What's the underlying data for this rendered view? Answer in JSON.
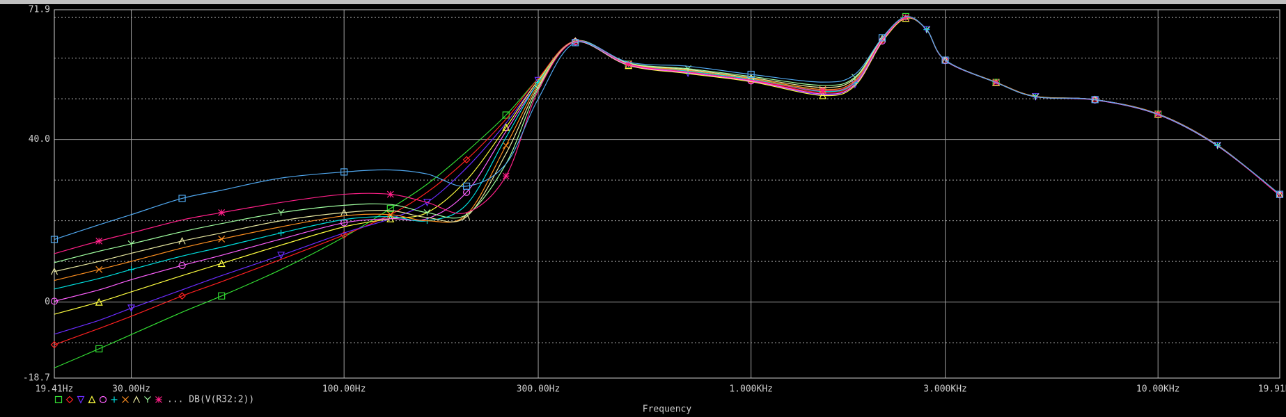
{
  "chart_data": {
    "type": "line",
    "x_label": "Frequency",
    "legend_label": "... DB(V(R32:2))",
    "x_scale": "log",
    "grid": true,
    "xlim": [
      19.41,
      19910
    ],
    "xticks": [
      {
        "value": 19.41,
        "label": "19.41Hz"
      },
      {
        "value": 30,
        "label": "30.00Hz"
      },
      {
        "value": 100,
        "label": "100.00Hz"
      },
      {
        "value": 300,
        "label": "300.00Hz"
      },
      {
        "value": 1000,
        "label": "1.000KHz"
      },
      {
        "value": 3000,
        "label": "3.000KHz"
      },
      {
        "value": 10000,
        "label": "10.00KHz"
      },
      {
        "value": 19910,
        "label": "19.91KHz"
      }
    ],
    "ylim": [
      -18.7,
      71.9
    ],
    "yticks": [
      -18.7,
      0,
      {
        "value": 40,
        "label": "40.0"
      },
      71.9
    ],
    "y_minor_grid": [
      -10,
      10,
      20,
      30,
      50,
      60,
      70
    ],
    "x": [
      19.41,
      25,
      30,
      40,
      50,
      70,
      100,
      130,
      160,
      200,
      250,
      300,
      370,
      500,
      700,
      1000,
      1500,
      1800,
      2100,
      2400,
      2700,
      3000,
      4000,
      5000,
      7000,
      10000,
      14000,
      19910
    ],
    "series": [
      {
        "color": "#33dd33",
        "marker": "square",
        "values": [
          -16.2,
          -11.5,
          -8,
          -2.5,
          1.5,
          8,
          16,
          23,
          29,
          37,
          46,
          55,
          64.2,
          58.5,
          56.8,
          54.8,
          52.0,
          54.0,
          64.8,
          70.2,
          67,
          59.5,
          54,
          50.5,
          49.8,
          46.2,
          38.5,
          26.5
        ]
      },
      {
        "color": "#ff2020",
        "marker": "diamond",
        "values": [
          -10.5,
          -6.5,
          -3.5,
          1.5,
          5,
          10.5,
          16.5,
          21.5,
          27,
          35,
          45,
          55,
          64.2,
          58.4,
          56.5,
          54.5,
          51.5,
          53.8,
          64.4,
          70,
          67,
          59.4,
          54,
          50.5,
          49.8,
          46.2,
          38.4,
          26.4
        ]
      },
      {
        "color": "#6a2cff",
        "marker": "triangle-down",
        "values": [
          -7.9,
          -4.5,
          -1.5,
          3,
          6.5,
          11.5,
          17,
          20.5,
          24.5,
          33,
          44,
          54.5,
          64.1,
          58.3,
          56.3,
          54.3,
          51.0,
          53.5,
          64.2,
          70,
          67,
          59.5,
          54,
          50.5,
          49.8,
          46.2,
          38.5,
          26.5
        ]
      },
      {
        "color": "#ffff40",
        "marker": "triangle-up",
        "values": [
          -3,
          0,
          2.5,
          6.5,
          9.5,
          14,
          18.5,
          20.5,
          22,
          30,
          43,
          54.5,
          64.0,
          58.2,
          56.2,
          54.2,
          50.8,
          53.2,
          64,
          69.8,
          67,
          59.5,
          54,
          50.6,
          49.8,
          46.2,
          38.5,
          26.5
        ]
      },
      {
        "color": "#ff60ff",
        "marker": "circle",
        "values": [
          0.2,
          3,
          5.5,
          9,
          11.5,
          15.5,
          19.5,
          20.5,
          20.5,
          27,
          42,
          54,
          64.0,
          58.3,
          56.4,
          54.4,
          51.2,
          53.5,
          64.2,
          70,
          67,
          59.4,
          54,
          50.5,
          49.7,
          46.1,
          38.4,
          26.4
        ]
      },
      {
        "color": "#00e0e0",
        "marker": "plus",
        "values": [
          3.2,
          5.8,
          8,
          11.3,
          13.5,
          17,
          20.3,
          21,
          20,
          24,
          40.5,
          54,
          64.1,
          58.5,
          56.8,
          54.8,
          51.8,
          54,
          64.5,
          70,
          67,
          59.5,
          54,
          50.5,
          49.8,
          46.2,
          38.5,
          26.5
        ]
      },
      {
        "color": "#ff9020",
        "marker": "cross",
        "values": [
          5.3,
          8,
          10,
          13.3,
          15.5,
          18.5,
          21.2,
          21.5,
          20,
          21.5,
          38.5,
          53.5,
          64.2,
          58.6,
          57,
          55,
          52.3,
          54.5,
          64.6,
          70,
          67,
          59.5,
          54.1,
          50.6,
          49.8,
          46.3,
          38.6,
          26.3
        ]
      },
      {
        "color": "#e8e8a0",
        "marker": "lambda",
        "values": [
          7.5,
          10,
          12,
          15,
          17,
          20,
          22,
          22.5,
          20.8,
          21,
          36.5,
          53,
          64.2,
          58.7,
          57.2,
          55.2,
          52.8,
          55,
          64.8,
          70,
          67,
          59.5,
          54,
          50.5,
          49.8,
          46.2,
          38.5,
          26.4
        ]
      },
      {
        "color": "#a0ffa0",
        "marker": "y",
        "values": [
          9.7,
          12.5,
          14.3,
          17.3,
          19.3,
          22,
          23.8,
          24,
          22,
          21.5,
          34,
          52.5,
          64.2,
          58.8,
          57.4,
          55.5,
          53.3,
          55.3,
          65,
          70,
          67,
          59.5,
          54,
          50.5,
          49.8,
          46.2,
          38.5,
          26.5
        ]
      },
      {
        "color": "#ff2088",
        "marker": "star",
        "values": [
          11.9,
          15,
          17,
          20.2,
          22,
          24.5,
          26.5,
          26.5,
          24.5,
          22,
          31,
          52,
          64.1,
          58.5,
          56.6,
          54.6,
          52.0,
          54.2,
          64.5,
          70,
          67,
          59.5,
          54,
          50.5,
          49.8,
          46.2,
          38.5,
          26.2
        ]
      },
      {
        "color": "#50a8f0",
        "marker": "square",
        "in_legend": false,
        "values": [
          15.4,
          19,
          21.5,
          25.5,
          27.5,
          30.5,
          32,
          32.5,
          31.5,
          28.5,
          34,
          50,
          63.8,
          59,
          58,
          56,
          54.1,
          56,
          65,
          70.2,
          67,
          59.5,
          54,
          50.5,
          49.8,
          46.2,
          38.5,
          26.5
        ]
      }
    ]
  }
}
